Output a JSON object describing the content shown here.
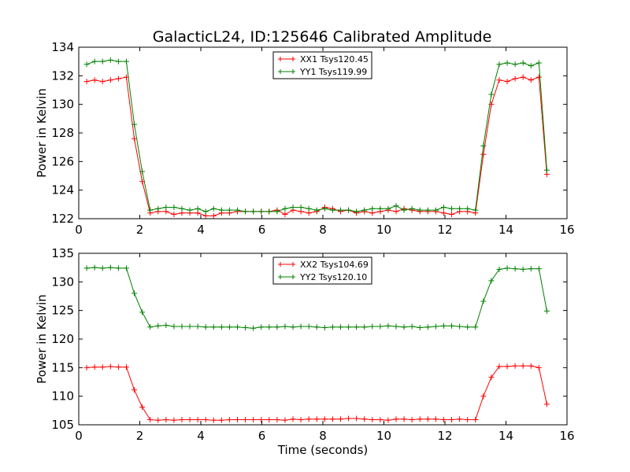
{
  "chart_data": [
    {
      "type": "line",
      "title": "GalacticL24, ID:125646 Calibrated Amplitude",
      "xlabel": "",
      "ylabel": "Power in Kelvin",
      "xlim": [
        0,
        16
      ],
      "ylim": [
        122,
        134
      ],
      "xticks": [
        0,
        2,
        4,
        6,
        8,
        10,
        12,
        14,
        16
      ],
      "yticks": [
        122,
        124,
        126,
        128,
        130,
        132,
        134
      ],
      "grid": false,
      "legend": "top-center",
      "x": [
        0.26,
        0.52,
        0.78,
        1.04,
        1.3,
        1.56,
        1.82,
        2.08,
        2.34,
        2.6,
        2.86,
        3.12,
        3.38,
        3.64,
        3.9,
        4.16,
        4.42,
        4.68,
        4.94,
        5.2,
        5.46,
        5.72,
        5.98,
        6.24,
        6.5,
        6.76,
        7.02,
        7.28,
        7.54,
        7.8,
        8.06,
        8.32,
        8.58,
        8.84,
        9.1,
        9.36,
        9.62,
        9.88,
        10.14,
        10.4,
        10.66,
        10.92,
        11.18,
        11.44,
        11.7,
        11.96,
        12.22,
        12.48,
        12.74,
        13.0,
        13.26,
        13.52,
        13.78,
        14.04,
        14.3,
        14.56,
        14.82,
        15.08,
        15.34
      ],
      "series": [
        {
          "name": "XX1 Tsys120.45",
          "color": "#ff0000",
          "values": [
            131.6,
            131.7,
            131.6,
            131.7,
            131.8,
            131.9,
            127.6,
            124.6,
            122.4,
            122.5,
            122.5,
            122.3,
            122.4,
            122.4,
            122.4,
            122.2,
            122.2,
            122.4,
            122.4,
            122.5,
            122.5,
            122.5,
            122.5,
            122.5,
            122.6,
            122.3,
            122.6,
            122.5,
            122.4,
            122.5,
            122.8,
            122.7,
            122.5,
            122.6,
            122.4,
            122.5,
            122.4,
            122.5,
            122.6,
            122.5,
            122.7,
            122.6,
            122.5,
            122.5,
            122.5,
            122.4,
            122.3,
            122.5,
            122.5,
            122.4,
            126.5,
            130.0,
            131.7,
            131.6,
            131.8,
            131.9,
            131.7,
            131.9,
            125.1
          ]
        },
        {
          "name": "YY1 Tsys119.99",
          "color": "#008000",
          "values": [
            132.8,
            133.0,
            133.0,
            133.1,
            133.0,
            133.0,
            128.6,
            125.3,
            122.6,
            122.7,
            122.8,
            122.8,
            122.7,
            122.6,
            122.7,
            122.5,
            122.7,
            122.6,
            122.6,
            122.6,
            122.5,
            122.5,
            122.5,
            122.5,
            122.5,
            122.7,
            122.8,
            122.8,
            122.7,
            122.6,
            122.7,
            122.6,
            122.6,
            122.6,
            122.5,
            122.6,
            122.7,
            122.7,
            122.7,
            122.9,
            122.6,
            122.7,
            122.6,
            122.6,
            122.6,
            122.8,
            122.7,
            122.7,
            122.7,
            122.6,
            127.1,
            130.7,
            132.8,
            132.9,
            132.8,
            132.9,
            132.7,
            132.9,
            125.4
          ]
        }
      ]
    },
    {
      "type": "line",
      "title": "",
      "xlabel": "Time (seconds)",
      "ylabel": "Power in Kelvin",
      "xlim": [
        0,
        16
      ],
      "ylim": [
        105,
        135
      ],
      "xticks": [
        0,
        2,
        4,
        6,
        8,
        10,
        12,
        14,
        16
      ],
      "yticks": [
        105,
        110,
        115,
        120,
        125,
        130,
        135
      ],
      "grid": false,
      "legend": "top-center",
      "x": [
        0.26,
        0.52,
        0.78,
        1.04,
        1.3,
        1.56,
        1.82,
        2.08,
        2.34,
        2.6,
        2.86,
        3.12,
        3.38,
        3.64,
        3.9,
        4.16,
        4.42,
        4.68,
        4.94,
        5.2,
        5.46,
        5.72,
        5.98,
        6.24,
        6.5,
        6.76,
        7.02,
        7.28,
        7.54,
        7.8,
        8.06,
        8.32,
        8.58,
        8.84,
        9.1,
        9.36,
        9.62,
        9.88,
        10.14,
        10.4,
        10.66,
        10.92,
        11.18,
        11.44,
        11.7,
        11.96,
        12.22,
        12.48,
        12.74,
        13.0,
        13.26,
        13.52,
        13.78,
        14.04,
        14.3,
        14.56,
        14.82,
        15.08,
        15.34
      ],
      "series": [
        {
          "name": "XX2 Tsys104.69",
          "color": "#ff0000",
          "values": [
            115.0,
            115.1,
            115.1,
            115.2,
            115.1,
            115.1,
            111.1,
            108.1,
            105.9,
            105.8,
            105.9,
            105.8,
            105.9,
            105.9,
            105.9,
            105.9,
            105.8,
            105.8,
            105.9,
            105.9,
            105.9,
            105.9,
            105.9,
            105.9,
            105.9,
            105.8,
            106.0,
            105.9,
            106.0,
            106.0,
            106.0,
            106.0,
            106.0,
            106.1,
            106.1,
            106.0,
            105.9,
            105.9,
            105.8,
            106.0,
            106.0,
            105.9,
            106.0,
            106.0,
            106.0,
            105.9,
            105.9,
            106.0,
            105.9,
            105.9,
            110.0,
            113.3,
            115.2,
            115.2,
            115.3,
            115.3,
            115.3,
            115.0,
            108.6
          ]
        },
        {
          "name": "YY2 Tsys120.10",
          "color": "#008000",
          "values": [
            132.4,
            132.5,
            132.4,
            132.5,
            132.4,
            132.4,
            128.0,
            124.7,
            122.1,
            122.3,
            122.4,
            122.2,
            122.2,
            122.2,
            122.2,
            122.1,
            122.1,
            122.1,
            122.1,
            122.1,
            122.0,
            121.9,
            122.1,
            122.1,
            122.1,
            122.2,
            122.1,
            122.2,
            122.2,
            122.1,
            122.0,
            122.1,
            122.1,
            122.1,
            122.1,
            122.1,
            122.2,
            122.2,
            122.3,
            122.2,
            122.1,
            122.2,
            122.0,
            122.1,
            122.2,
            122.3,
            122.3,
            122.2,
            122.1,
            122.1,
            126.6,
            130.2,
            132.2,
            132.4,
            132.3,
            132.2,
            132.3,
            132.3,
            124.9
          ]
        }
      ]
    }
  ]
}
